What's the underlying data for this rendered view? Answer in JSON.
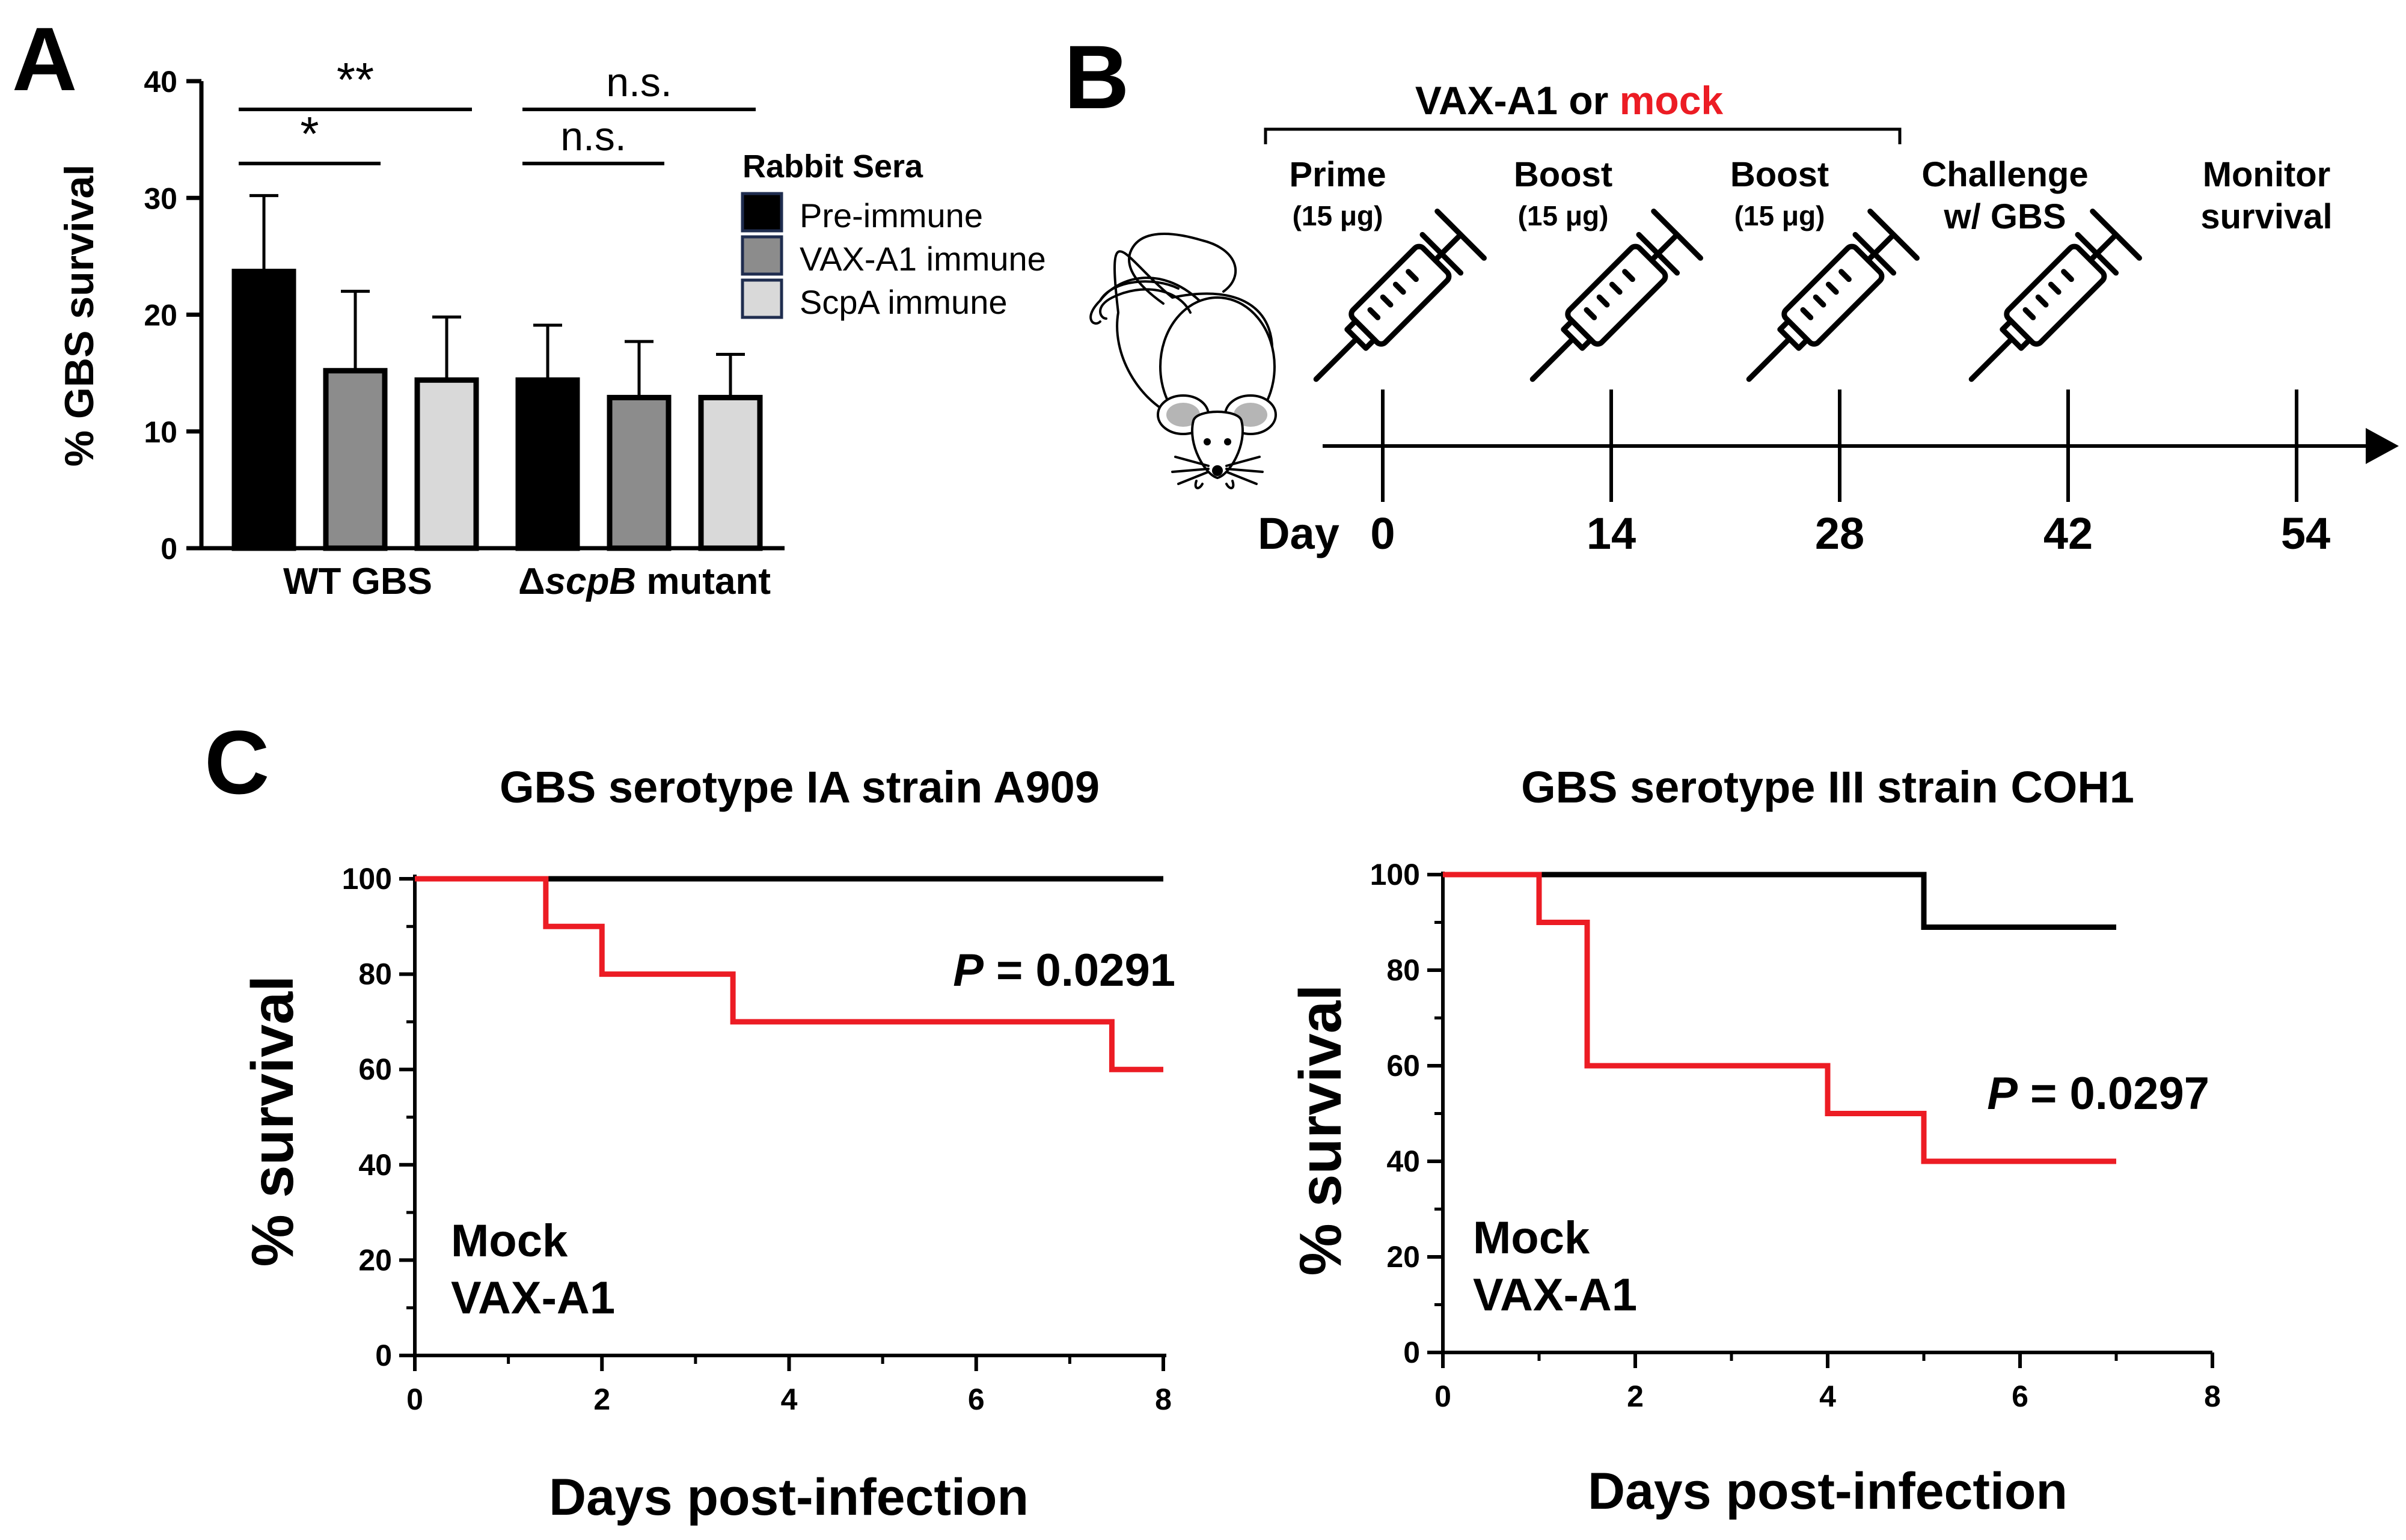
{
  "figure": {
    "panel_labels": {
      "a": "A",
      "b": "B",
      "c": "C"
    }
  },
  "colors": {
    "black": "#000000",
    "red": "#ec1c24",
    "pre_immune": "#000000",
    "vax_immune": "#8c8c8c",
    "scpa_immune": "#d9d9d9"
  },
  "chart_data": [
    {
      "id": "panel-a",
      "type": "bar",
      "title": "",
      "ylabel": "% GBS survival",
      "xlabel": "",
      "ylim": [
        0,
        40
      ],
      "yticks": [
        "0",
        "10",
        "20",
        "30",
        "40"
      ],
      "groups": [
        {
          "label": "WT GBS",
          "label_italic": ""
        },
        {
          "label": "Δ",
          "label_italic": "scpB",
          "label_suffix": " mutant"
        }
      ],
      "series": [
        {
          "name": "Pre-immune",
          "values": [
            23.7,
            14.4
          ],
          "errors": [
            6.5,
            4.7
          ]
        },
        {
          "name": "VAX-A1 immune",
          "values": [
            15.2,
            12.9
          ],
          "errors": [
            6.8,
            4.8
          ]
        },
        {
          "name": "ScpA immune",
          "values": [
            14.4,
            12.9
          ],
          "errors": [
            5.4,
            3.7
          ]
        }
      ],
      "legend_title": "Rabbit Sera",
      "legend_position": "right",
      "significance": [
        {
          "label": "**",
          "group": 0,
          "from_series": 0,
          "to_series": 2,
          "level": 2
        },
        {
          "label": "*",
          "group": 0,
          "from_series": 0,
          "to_series": 1,
          "level": 1
        },
        {
          "label": "n.s.",
          "group": 1,
          "from_series": 0,
          "to_series": 2,
          "level": 2
        },
        {
          "label": "n.s.",
          "group": 1,
          "from_series": 0,
          "to_series": 1,
          "level": 1
        }
      ]
    },
    {
      "id": "panel-c-left",
      "type": "line",
      "title": "GBS serotype IA strain A909",
      "xlabel": "Days post-infection",
      "ylabel": "% survival",
      "xlim": [
        0,
        8
      ],
      "ylim": [
        0,
        100
      ],
      "xticks": [
        0,
        2,
        4,
        6,
        8
      ],
      "yticks": [
        0,
        20,
        40,
        60,
        80,
        100
      ],
      "series": [
        {
          "name": "VAX-A1",
          "color": "#000000",
          "x": [
            0,
            8
          ],
          "y": [
            100,
            100
          ]
        },
        {
          "name": "Mock",
          "color": "#ec1c24",
          "x": [
            0,
            1.4,
            2,
            3.4,
            7.45,
            8
          ],
          "y": [
            100,
            90,
            80,
            70,
            60,
            60
          ]
        }
      ],
      "annotation": {
        "prefix": "P",
        "text": " = 0.0291"
      },
      "legend_position": "bottom-left"
    },
    {
      "id": "panel-c-right",
      "type": "line",
      "title": "GBS serotype III strain COH1",
      "xlabel": "Days post-infection",
      "ylabel": "% survival",
      "xlim": [
        0,
        8
      ],
      "ylim": [
        0,
        100
      ],
      "xticks": [
        0,
        2,
        4,
        6,
        8
      ],
      "yticks": [
        0,
        20,
        40,
        60,
        80,
        100
      ],
      "series": [
        {
          "name": "VAX-A1",
          "color": "#000000",
          "x": [
            0,
            5,
            7
          ],
          "y": [
            100,
            89,
            89
          ]
        },
        {
          "name": "Mock",
          "color": "#ec1c24",
          "x": [
            0,
            1,
            1.5,
            4,
            5,
            7
          ],
          "y": [
            100,
            90,
            60,
            50,
            40,
            40
          ]
        }
      ],
      "annotation": {
        "prefix": "P",
        "text": " = 0.0297"
      },
      "legend_position": "bottom-left"
    }
  ],
  "schedule": {
    "title_black": "VAX-A1 or ",
    "title_red": "mock",
    "day_label": "Day",
    "steps": [
      {
        "label": "Prime",
        "dose": "(15 μg)",
        "day": "0"
      },
      {
        "label": "Boost",
        "dose": "(15 μg)",
        "day": "14"
      },
      {
        "label": "Boost",
        "dose": "(15 μg)",
        "day": "28"
      },
      {
        "label": "Challenge",
        "label2": "w/ GBS",
        "day": "42"
      },
      {
        "label": "Monitor",
        "label2": "survival",
        "day": "54"
      }
    ]
  }
}
